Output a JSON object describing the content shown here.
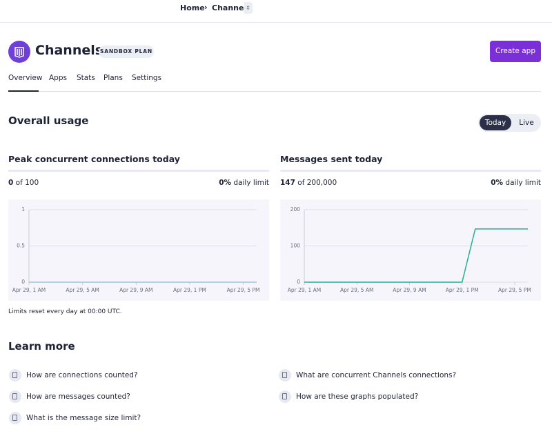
{
  "breadcrumb": [
    "Home",
    "Channels"
  ],
  "header": {
    "title": "Channels",
    "badge": "SANDBOX PLAN",
    "button": "Create app"
  },
  "tabs": [
    "Overview",
    "Apps",
    "Stats",
    "Plans",
    "Settings"
  ],
  "usage": {
    "title": "Overall usage",
    "toggle": [
      "Today",
      "Live"
    ]
  },
  "panels": [
    {
      "used": "0",
      "of": "of 100",
      "percent": "0%",
      "limit": "daily limit"
    },
    {
      "used": "147",
      "of": "of 200,000",
      "percent": "0%",
      "limit": "daily limit"
    }
  ],
  "chart_data": [
    {
      "type": "line",
      "title": "Peak concurrent connections today",
      "categories": [
        "Apr 29, 1 AM",
        null,
        null,
        null,
        "Apr 29, 5 AM",
        null,
        null,
        null,
        "Apr 29, 9 AM",
        null,
        null,
        null,
        "Apr 29, 1 PM",
        null,
        null,
        null,
        "Apr 29, 5 PM",
        null
      ],
      "values": [
        0,
        0,
        0,
        0,
        0,
        0,
        0,
        0,
        0,
        0,
        0,
        0,
        0,
        0,
        0,
        0,
        0,
        0
      ],
      "color": "#9fc3dd",
      "ylim": [
        0,
        1
      ],
      "yticks": [
        0,
        0.5,
        1
      ],
      "grid": true
    },
    {
      "type": "line",
      "title": "Messages sent today",
      "categories": [
        "Apr 29, 1 AM",
        null,
        null,
        null,
        "Apr 29, 5 AM",
        null,
        null,
        null,
        "Apr 29, 9 AM",
        null,
        null,
        null,
        "Apr 29, 1 PM",
        null,
        null,
        null,
        "Apr 29, 5 PM",
        null
      ],
      "values": [
        0,
        0,
        0,
        0,
        0,
        0,
        0,
        0,
        0,
        0,
        0,
        0,
        0,
        147,
        147,
        147,
        147,
        147
      ],
      "color": "#1db394",
      "ylim": [
        0,
        200
      ],
      "yticks": [
        0,
        100,
        200
      ],
      "grid": true
    }
  ],
  "footnote": "Limits reset every day at 00:00 UTC.",
  "learn_more": {
    "title": "Learn more",
    "left": [
      "How are connections counted?",
      "How are messages counted?",
      "What is the message size limit?"
    ],
    "right": [
      "What are concurrent Channels connections?",
      "How are these graphs populated?"
    ]
  }
}
